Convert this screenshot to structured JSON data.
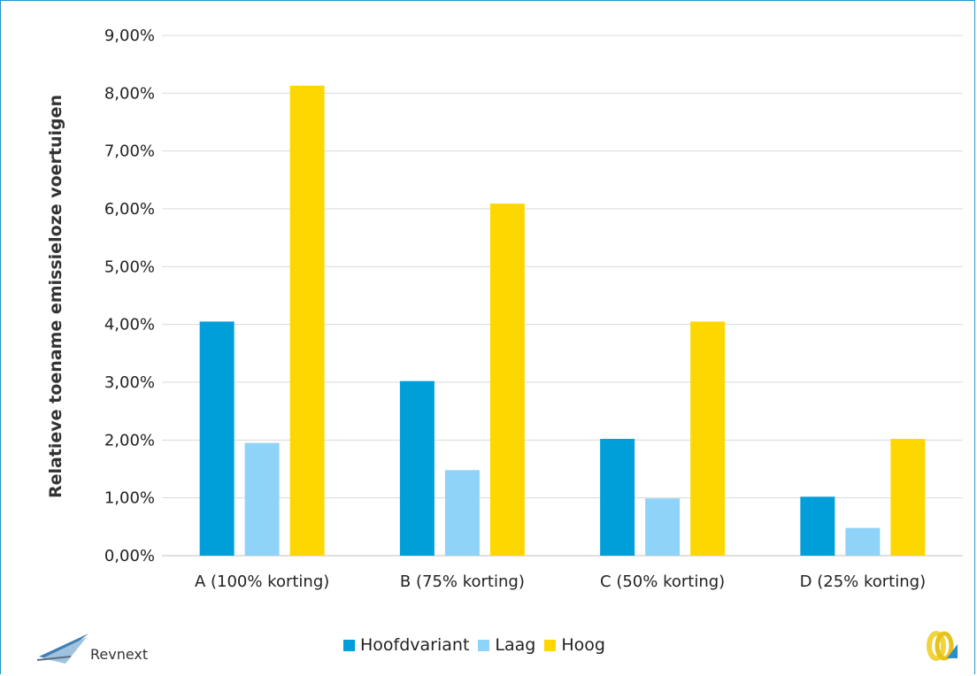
{
  "chart_data": {
    "type": "bar",
    "categories": [
      "A (100% korting)",
      "B (75% korting)",
      "C (50% korting)",
      "D (25% korting)"
    ],
    "series": [
      {
        "name": "Hoofdvariant",
        "values": [
          4.05,
          3.02,
          2.02,
          1.02
        ],
        "color": "#009fd9"
      },
      {
        "name": "Laag",
        "values": [
          1.95,
          1.48,
          0.99,
          0.48
        ],
        "color": "#8fd3f9"
      },
      {
        "name": "Hoog",
        "values": [
          8.13,
          6.09,
          4.05,
          2.02
        ],
        "color": "#ffd700"
      }
    ],
    "yticks": [
      "0,00%",
      "1,00%",
      "2,00%",
      "3,00%",
      "4,00%",
      "5,00%",
      "6,00%",
      "7,00%",
      "8,00%",
      "9,00%"
    ],
    "ylabel": "Relatieve toename emissieloze voertuigen",
    "xlabel": "",
    "ylim": [
      0,
      9
    ],
    "grid": true,
    "legend_position": "bottom"
  },
  "branding": {
    "left_logo_text": "Revnext",
    "right_logo": "interlocked-rings-logo"
  }
}
